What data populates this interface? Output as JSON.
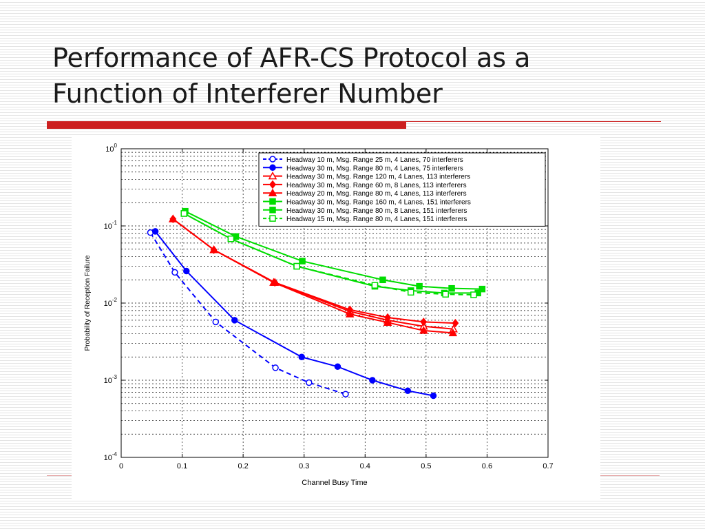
{
  "slide": {
    "title_line1": "Performance of AFR-CS Protocol as a",
    "title_line2": "Function of Interferer Number"
  },
  "colors": {
    "accent_red": "#cc1f1f",
    "blue": "#0000ff",
    "red": "#ff0000",
    "green": "#00dd00"
  },
  "chart_data": {
    "type": "line",
    "xlabel": "Channel Busy Time",
    "ylabel": "Probability of Reception Failure",
    "xlim": [
      0,
      0.7
    ],
    "ylim": [
      0.0001,
      1
    ],
    "yscale": "log",
    "grid": true,
    "legend_position": "top-right",
    "x_ticks": [
      {
        "v": 0,
        "label": "0"
      },
      {
        "v": 0.1,
        "label": "0.1"
      },
      {
        "v": 0.2,
        "label": "0.2"
      },
      {
        "v": 0.3,
        "label": "0.3"
      },
      {
        "v": 0.4,
        "label": "0.4"
      },
      {
        "v": 0.5,
        "label": "0.5"
      },
      {
        "v": 0.6,
        "label": "0.6"
      },
      {
        "v": 0.7,
        "label": "0.7"
      }
    ],
    "y_ticks": [
      {
        "exp": 0,
        "base": "10",
        "sup": "0"
      },
      {
        "exp": -1,
        "base": "10",
        "sup": "-1"
      },
      {
        "exp": -2,
        "base": "10",
        "sup": "-2"
      },
      {
        "exp": -3,
        "base": "10",
        "sup": "-3"
      },
      {
        "exp": -4,
        "base": "10",
        "sup": "-4"
      }
    ],
    "series": [
      {
        "name": "Headway 10 m, Msg. Range 25 m, 4 Lanes, 70 interferers",
        "color": "#0000ff",
        "dash": true,
        "marker": "circle-open",
        "x": [
          0.048,
          0.088,
          0.155,
          0.253,
          0.308,
          0.368
        ],
        "y": [
          0.082,
          0.025,
          0.0057,
          0.00145,
          0.00093,
          0.00066
        ]
      },
      {
        "name": "Headway 30 m, Msg. Range 80 m, 4 Lanes, 75 interferers",
        "color": "#0000ff",
        "dash": false,
        "marker": "circle",
        "x": [
          0.056,
          0.107,
          0.186,
          0.296,
          0.355,
          0.412,
          0.47,
          0.512
        ],
        "y": [
          0.085,
          0.026,
          0.006,
          0.002,
          0.0015,
          0.001,
          0.00073,
          0.00063
        ]
      },
      {
        "name": "Headway 30 m, Msg. Range 120 m, 4 Lanes, 113 interferers",
        "color": "#ff0000",
        "dash": false,
        "marker": "triangle-open",
        "x": [
          0.085,
          0.152,
          0.252,
          0.375,
          0.437,
          0.496,
          0.545
        ],
        "y": [
          0.123,
          0.049,
          0.0185,
          0.0078,
          0.006,
          0.005,
          0.0046
        ]
      },
      {
        "name": "Headway 30 m, Msg. Range 60 m, 8 Lanes, 113 interferers",
        "color": "#ff0000",
        "dash": false,
        "marker": "diamond",
        "x": [
          0.085,
          0.152,
          0.252,
          0.375,
          0.437,
          0.496,
          0.548
        ],
        "y": [
          0.123,
          0.049,
          0.0185,
          0.0082,
          0.0065,
          0.0057,
          0.0055
        ]
      },
      {
        "name": "Headway 20 m, Msg. Range 80 m, 4 Lanes, 113 interferers",
        "color": "#ff0000",
        "dash": false,
        "marker": "triangle",
        "x": [
          0.085,
          0.152,
          0.25,
          0.375,
          0.437,
          0.496,
          0.544
        ],
        "y": [
          0.123,
          0.049,
          0.0185,
          0.0072,
          0.0056,
          0.0044,
          0.0041
        ]
      },
      {
        "name": "Headway 30 m, Msg. Range 160 m, 4 Lanes, 151 interferers",
        "color": "#00dd00",
        "dash": false,
        "marker": "square",
        "x": [
          0.105,
          0.188,
          0.297,
          0.429,
          0.489,
          0.542,
          0.592
        ],
        "y": [
          0.155,
          0.073,
          0.035,
          0.02,
          0.0165,
          0.0155,
          0.0152
        ]
      },
      {
        "name": "Headway 30 m, Msg. Range 80 m, 8 Lanes, 151 interferers",
        "color": "#00dd00",
        "dash": false,
        "marker": "square",
        "x": [
          0.103,
          0.18,
          0.288,
          0.416,
          0.475,
          0.53,
          0.585
        ],
        "y": [
          0.145,
          0.068,
          0.03,
          0.0165,
          0.0145,
          0.0135,
          0.0135
        ]
      },
      {
        "name": "Headway 15 m, Msg. Range 80 m, 4 Lanes, 151 interferers",
        "color": "#00dd00",
        "dash": true,
        "marker": "square-open",
        "x": [
          0.103,
          0.18,
          0.288,
          0.416,
          0.475,
          0.532,
          0.578
        ],
        "y": [
          0.145,
          0.068,
          0.03,
          0.017,
          0.0138,
          0.013,
          0.0128
        ]
      }
    ]
  }
}
